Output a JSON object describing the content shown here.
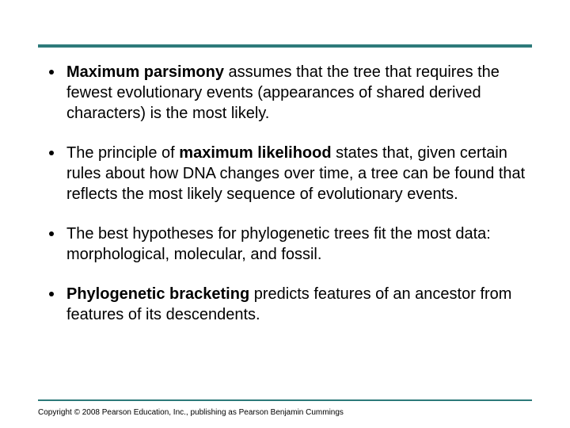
{
  "slide": {
    "top_rule_color": "#2d7a7a",
    "bottom_rule_color": "#2d7a7a",
    "background_color": "#ffffff",
    "text_color": "#000000",
    "font_family": "Arial",
    "bullet_fontsize": 20,
    "copyright_fontsize": 10,
    "bullets": [
      {
        "runs": [
          {
            "t": "Maximum parsimony",
            "bold": true
          },
          {
            "t": " assumes that the tree that requires the fewest evolutionary events (appearances of shared derived characters) is the most likely.",
            "bold": false
          }
        ]
      },
      {
        "runs": [
          {
            "t": "The principle of ",
            "bold": false
          },
          {
            "t": "maximum likelihood",
            "bold": true
          },
          {
            "t": " states that, given certain rules about how DNA changes over time, a tree can be found that reflects the most likely sequence of evolutionary events.",
            "bold": false
          }
        ]
      },
      {
        "runs": [
          {
            "t": "The best hypotheses for phylogenetic trees fit the most data: morphological, molecular, and fossil.",
            "bold": false
          }
        ]
      },
      {
        "runs": [
          {
            "t": "Phylogenetic bracketing",
            "bold": true
          },
          {
            "t": " predicts features of an ancestor from features of its descendents.",
            "bold": false
          }
        ]
      }
    ],
    "copyright": "Copyright © 2008 Pearson Education, Inc., publishing as Pearson Benjamin Cummings"
  }
}
